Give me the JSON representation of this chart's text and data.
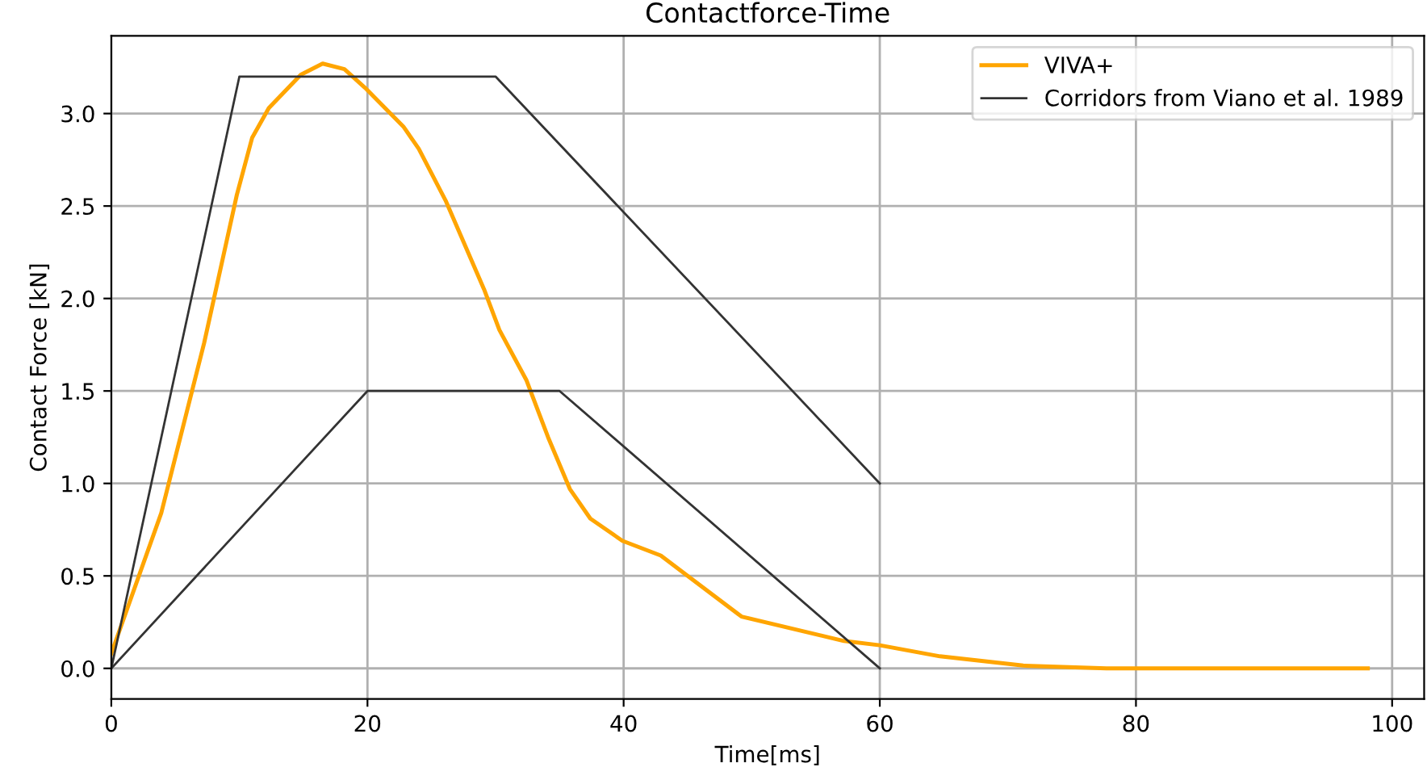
{
  "chart_data": {
    "type": "line",
    "title": "Contactforce-Time",
    "xlabel": "Time[ms]",
    "ylabel": "Contact Force [kN]",
    "xlim": [
      0,
      102.5
    ],
    "ylim": [
      -0.165,
      3.42
    ],
    "xticks": [
      0,
      20,
      40,
      60,
      80,
      100
    ],
    "yticks": [
      {
        "value": 0,
        "label": "0.0"
      },
      {
        "value": 0.5,
        "label": "0.5"
      },
      {
        "value": 1,
        "label": "1.0"
      },
      {
        "value": 1.5,
        "label": "1.5"
      },
      {
        "value": 2,
        "label": "2.0"
      },
      {
        "value": 2.5,
        "label": "2.5"
      },
      {
        "value": 3,
        "label": "3.0"
      }
    ],
    "grid": true,
    "legend": "top right",
    "marker": "none",
    "line_style": "solid",
    "series": [
      {
        "name": "VIVA+",
        "color": "#ffa500",
        "x": [
          0,
          3.9,
          7.25,
          9.8,
          11,
          12.3,
          14.8,
          16.5,
          18.2,
          19.8,
          22.8,
          24,
          26.1,
          29.1,
          30.3,
          32.4,
          34.1,
          35.8,
          37.4,
          39.9,
          42.9,
          45,
          49.2,
          57.2,
          60,
          64.7,
          71.2,
          77.7,
          98.1
        ],
        "values": [
          0.08,
          0.84,
          1.76,
          2.56,
          2.87,
          3.03,
          3.21,
          3.27,
          3.24,
          3.14,
          2.93,
          2.81,
          2.53,
          2.05,
          1.83,
          1.56,
          1.25,
          0.97,
          0.81,
          0.69,
          0.61,
          0.5,
          0.28,
          0.148,
          0.125,
          0.065,
          0.015,
          0,
          0
        ]
      },
      {
        "name": "Corridors from Viano et al. 1989",
        "color": "#333333",
        "x": [
          0,
          10,
          30,
          60
        ],
        "values": [
          0,
          3.2,
          3.2,
          1.0
        ]
      },
      {
        "color": "#333333",
        "x": [
          0,
          20,
          35,
          60
        ],
        "values": [
          0,
          1.5,
          1.5,
          0
        ]
      }
    ]
  }
}
